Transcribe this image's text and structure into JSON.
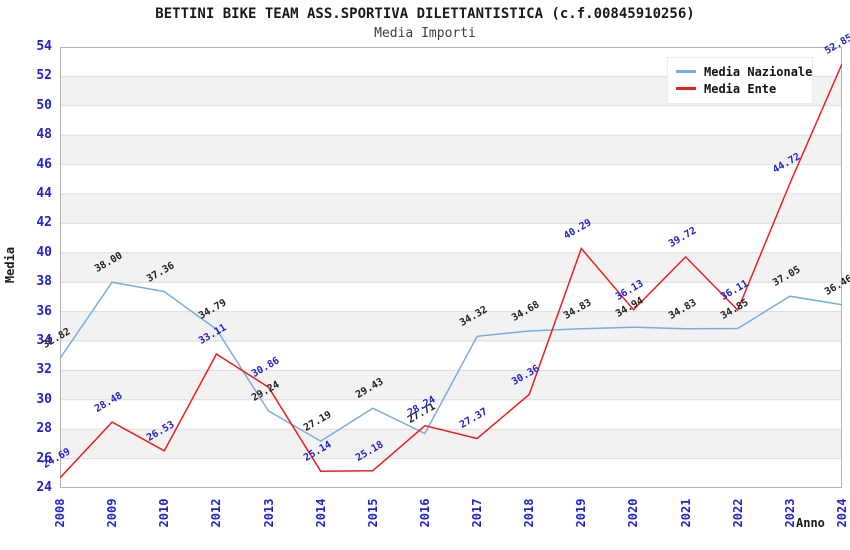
{
  "header": {
    "title": "BETTINI BIKE TEAM ASS.SPORTIVA DILETTANTISTICA (c.f.00845910256)",
    "subtitle": "Media Importi"
  },
  "chart_data": {
    "type": "line",
    "title": "BETTINI BIKE TEAM ASS.SPORTIVA DILETTANTISTICA (c.f.00845910256)",
    "subtitle": "Media Importi",
    "xlabel": "Anno",
    "ylabel": "Media",
    "ylim": [
      24,
      54
    ],
    "yticks": [
      24,
      26,
      28,
      30,
      32,
      34,
      36,
      38,
      40,
      42,
      44,
      46,
      48,
      50,
      52,
      54
    ],
    "categories": [
      "2008",
      "2009",
      "2010",
      "2012",
      "2013",
      "2014",
      "2015",
      "2016",
      "2017",
      "2018",
      "2019",
      "2020",
      "2021",
      "2022",
      "2023",
      "2024"
    ],
    "series": [
      {
        "name": "Media Nazionale",
        "line_color": "#79ade0",
        "label_color": "#222222",
        "values": [
          32.82,
          38.0,
          37.36,
          34.79,
          29.24,
          27.19,
          29.43,
          27.71,
          34.32,
          34.68,
          34.83,
          34.94,
          34.83,
          34.85,
          37.05,
          36.46
        ]
      },
      {
        "name": "Media Ente",
        "line_color": "#e82120",
        "label_color": "#2323cd",
        "values": [
          24.69,
          28.48,
          26.53,
          33.11,
          30.86,
          25.14,
          25.18,
          28.24,
          27.37,
          30.36,
          40.29,
          36.13,
          39.72,
          36.11,
          44.72,
          52.85
        ]
      }
    ],
    "grid": "horizontal",
    "band_colors": [
      "#ffffff",
      "#f2f2f2"
    ],
    "gridline_color": "#dcdcdc",
    "border_color": "#b3b3b3",
    "tick_text_color": "#2323cd",
    "legend_position": "top-right",
    "data_labels": "on, 2 decimals, rotated"
  }
}
